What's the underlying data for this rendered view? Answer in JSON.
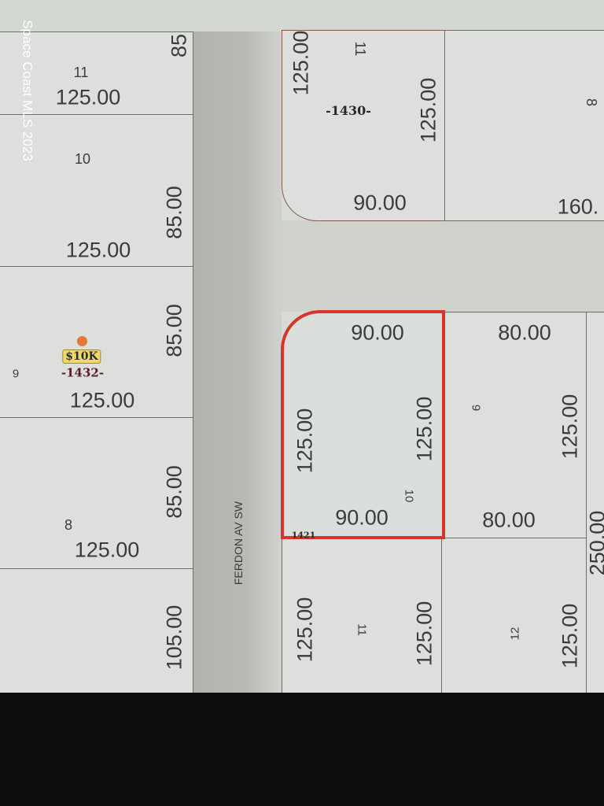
{
  "watermark": "Space Coast MLS 2023",
  "colors": {
    "selected_parcel_outline": "#d8342c",
    "road": "#b9bab3",
    "lot": "#dcdfdb",
    "listing_marker": "#e07a35",
    "price_badge": "#f2d86a"
  },
  "road_label": "FERDON AV SW",
  "listing": {
    "price": "$10K",
    "parcel_id": "-1432-",
    "marker_icon": "dot-marker-icon"
  },
  "labels": {
    "l_11": "11",
    "l_11_depth": "125.00",
    "l_11_front": "85",
    "l_10": "10",
    "l_10_depth": "125.00",
    "l_10_front": "85.00",
    "l_9_front": "85.00",
    "l_9": "9",
    "l_9_depth": "125.00",
    "l_8_front": "85.00",
    "l_8": "8",
    "l_8_depth": "125.00",
    "l_7_front": "105.00",
    "ur_side": "125.00",
    "ur_lot": "11",
    "ur_parcel": "-1430-",
    "ur_side2": "125.00",
    "ur_front": "90.00",
    "ur8_lot": "8",
    "ur8_front": "160.",
    "sel_top": "90.00",
    "sel_left": "125.00",
    "sel_right": "125.00",
    "sel_bottom": "90.00",
    "sel_lot": "10",
    "sel_parcel": "1421",
    "r9_top": "80.00",
    "r9_lot": "9",
    "r9_side": "125.00",
    "r9_bottom": "80.00",
    "far_right": "250.00",
    "b11_left": "125.00",
    "b11_lot": "11",
    "b11_right": "125.00",
    "b12_lot": "12",
    "b12_side": "125.00"
  }
}
